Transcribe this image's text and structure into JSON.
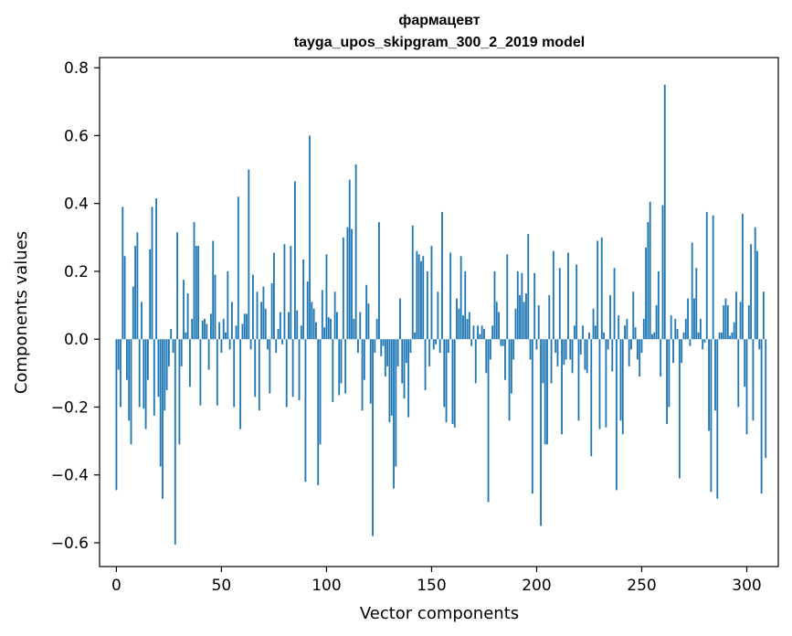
{
  "chart_data": {
    "type": "bar",
    "title": "фармацевт",
    "subtitle": "tayga_upos_skipgram_300_2_2019 model",
    "xlabel": "Vector components",
    "ylabel": "Components values",
    "xlim": [
      -8,
      315
    ],
    "ylim": [
      -0.67,
      0.83
    ],
    "xticks": [
      0,
      50,
      100,
      150,
      200,
      250,
      300
    ],
    "yticks": [
      -0.6,
      -0.4,
      -0.2,
      0.0,
      0.2,
      0.4,
      0.6,
      0.8
    ],
    "xtick_labels": [
      "0",
      "50",
      "100",
      "150",
      "200",
      "250",
      "300"
    ],
    "ytick_labels": [
      "−0.6",
      "−0.4",
      "−0.2",
      "0.0",
      "0.2",
      "0.4",
      "0.6",
      "0.8"
    ],
    "bar_color": "#1f77b4",
    "grid": false,
    "legend": "none",
    "values": [
      -0.445,
      -0.09,
      -0.2,
      0.39,
      0.245,
      -0.12,
      -0.24,
      -0.31,
      0.155,
      0.275,
      0.315,
      -0.2,
      0.11,
      -0.205,
      -0.265,
      -0.12,
      0.265,
      0.39,
      -0.225,
      0.415,
      -0.17,
      -0.375,
      -0.47,
      -0.21,
      -0.15,
      -0.08,
      0.03,
      -0.04,
      -0.605,
      0.315,
      -0.31,
      -0.08,
      0.175,
      0.02,
      0.135,
      -0.14,
      0.06,
      0.345,
      0.275,
      0.275,
      -0.195,
      0.055,
      0.06,
      0.045,
      -0.09,
      0.075,
      0.29,
      0.19,
      -0.195,
      0.05,
      -0.04,
      0.06,
      0.02,
      0.2,
      -0.03,
      0.11,
      -0.2,
      0.04,
      0.42,
      -0.265,
      0.045,
      0.075,
      0.075,
      0.5,
      -0.03,
      0.19,
      -0.17,
      0.14,
      -0.21,
      0.11,
      0.155,
      0.09,
      -0.03,
      -0.16,
      0.165,
      0.255,
      -0.04,
      0.03,
      0.08,
      -0.015,
      0.28,
      -0.2,
      0.08,
      0.275,
      -0.17,
      0.465,
      0.085,
      -0.18,
      0.04,
      0.235,
      -0.42,
      0.17,
      0.6,
      0.11,
      0.09,
      0.05,
      -0.43,
      -0.31,
      0.145,
      0.035,
      0.25,
      0.065,
      0.06,
      -0.185,
      0.14,
      0.08,
      -0.165,
      -0.13,
      0.3,
      -0.16,
      0.33,
      0.47,
      0.325,
      0.06,
      0.515,
      -0.04,
      0.08,
      -0.21,
      -0.12,
      0.16,
      0.105,
      -0.19,
      -0.58,
      -0.04,
      0.06,
      0.345,
      -0.05,
      -0.02,
      -0.11,
      -0.08,
      -0.245,
      -0.225,
      -0.44,
      -0.375,
      -0.08,
      0.12,
      -0.13,
      -0.175,
      -0.07,
      -0.23,
      -0.04,
      0.335,
      0.02,
      0.26,
      0.25,
      0.23,
      0.245,
      -0.15,
      0.2,
      -0.08,
      0.275,
      -0.03,
      -0.015,
      0.14,
      -0.04,
      0.375,
      -0.2,
      -0.245,
      -0.04,
      0.255,
      -0.25,
      -0.26,
      0.12,
      0.09,
      0.245,
      0.07,
      0.2,
      0.06,
      0.08,
      -0.02,
      0.04,
      -0.13,
      0.04,
      0.015,
      0.04,
      0.03,
      -0.1,
      -0.48,
      -0.06,
      0.04,
      0.2,
      0.11,
      0.08,
      -0.02,
      -0.02,
      -0.12,
      0.25,
      -0.24,
      -0.16,
      -0.06,
      0.09,
      0.2,
      0.13,
      0.195,
      0.11,
      0.135,
      0.31,
      -0.06,
      -0.455,
      0.195,
      -0.03,
      0.1,
      -0.55,
      -0.13,
      -0.31,
      -0.31,
      0.13,
      -0.13,
      0.26,
      -0.04,
      -0.08,
      0.21,
      -0.28,
      -0.075,
      -0.06,
      0.255,
      -0.06,
      -0.1,
      0.04,
      0.22,
      -0.24,
      -0.045,
      0.04,
      -0.09,
      -0.1,
      0.02,
      -0.345,
      0.09,
      0.04,
      0.29,
      -0.265,
      0.3,
      0.02,
      -0.26,
      -0.03,
      0.13,
      -0.095,
      0.21,
      -0.445,
      0.07,
      -0.24,
      -0.28,
      0.04,
      0.06,
      -0.08,
      -0.03,
      0.14,
      0.035,
      -0.06,
      -0.11,
      -0.04,
      0.06,
      0.27,
      0.345,
      0.405,
      0.015,
      0.02,
      0.1,
      0.2,
      -0.11,
      0.395,
      0.75,
      -0.25,
      -0.2,
      0.07,
      -0.07,
      0.06,
      0.03,
      -0.41,
      -0.07,
      0.02,
      0.06,
      0.12,
      -0.02,
      0.285,
      0.12,
      0.21,
      0.02,
      0.06,
      -0.03,
      -0.01,
      0.375,
      -0.27,
      -0.45,
      0.365,
      -0.21,
      -0.47,
      0.02,
      0.02,
      0.1,
      0.12,
      0.1,
      0.01,
      0.02,
      0.05,
      0.14,
      -0.2,
      0.11,
      0.37,
      -0.14,
      -0.28,
      0.1,
      0.28,
      -0.24,
      0.33,
      0.26,
      -0.03,
      -0.455,
      0.14,
      -0.35
    ]
  }
}
